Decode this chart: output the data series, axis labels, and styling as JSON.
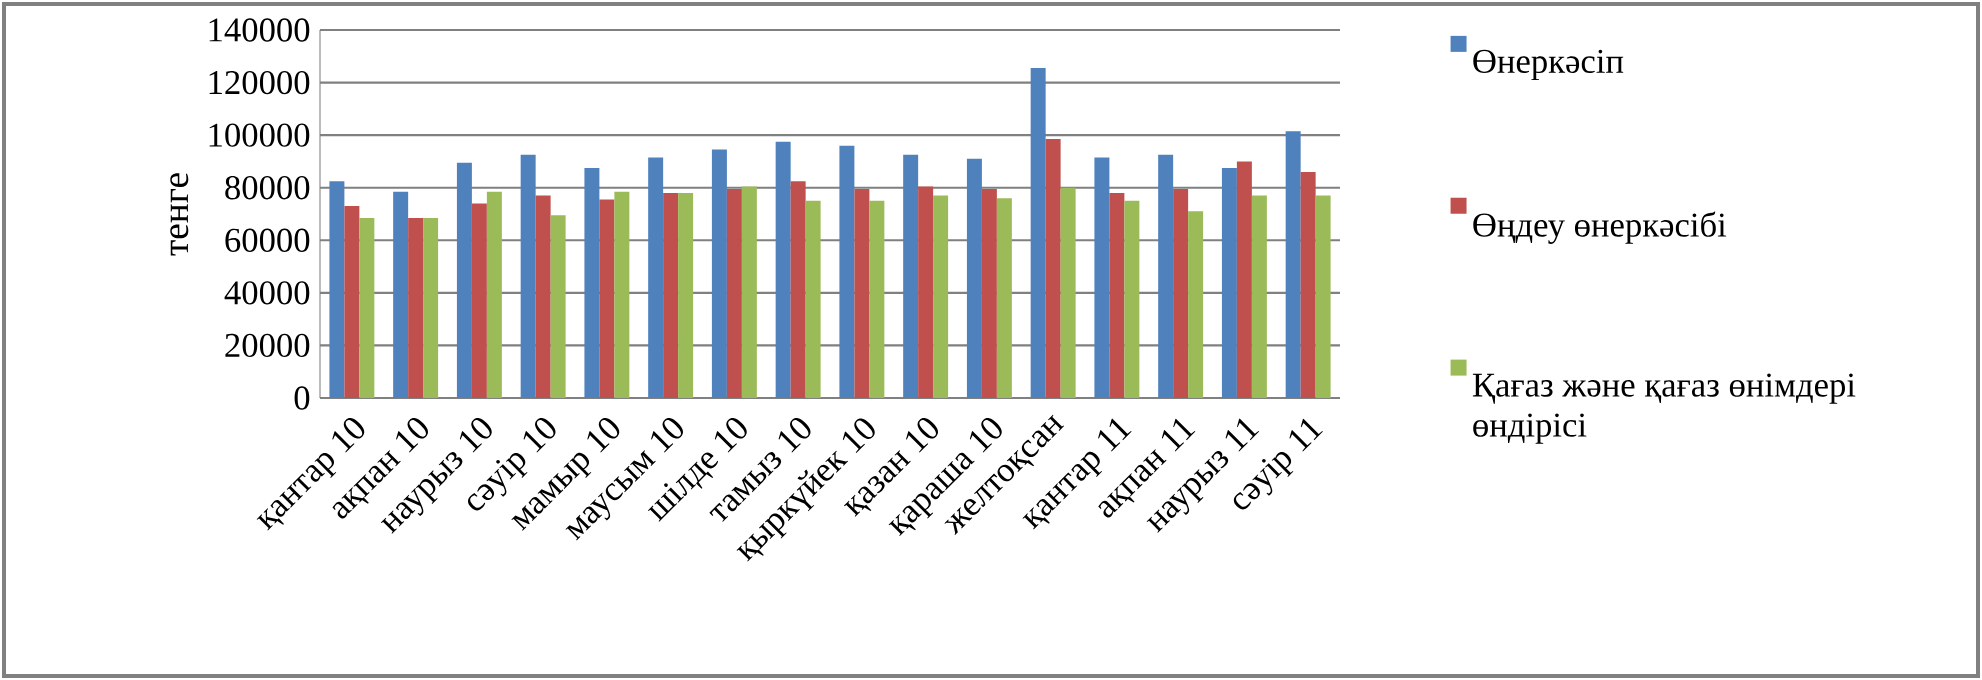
{
  "chart_data": {
    "type": "bar",
    "ylabel": "тенге",
    "categories": [
      "қантар 10",
      "ақпан 10",
      "наурыз 10",
      "сәуір 10",
      "мамыр 10",
      "маусым 10",
      "шілде 10",
      "тамыз 10",
      "қыркүйек 10",
      "қазан 10",
      "қараша 10",
      "желтоқсан",
      "қантар 11",
      "ақпан 11",
      "наурыз 11",
      "сәуір 11"
    ],
    "series": [
      {
        "name": "Өнеркәсіп",
        "color": "#4f81bd",
        "values": [
          82500,
          78500,
          89500,
          92500,
          87500,
          91500,
          94500,
          97500,
          96000,
          92500,
          91000,
          125500,
          91500,
          92500,
          87500,
          101500
        ]
      },
      {
        "name": "Өңдеу өнеркәсібі",
        "color": "#c0504d",
        "values": [
          73000,
          68500,
          74000,
          77000,
          75500,
          78000,
          79500,
          82500,
          79500,
          80500,
          79500,
          98500,
          78000,
          79500,
          90000,
          86000
        ]
      },
      {
        "name": "Қағаз  және қағаз өнімдері өндірісі",
        "color": "#9bbb59",
        "values": [
          68500,
          68500,
          78500,
          69500,
          78500,
          78000,
          80500,
          75000,
          75000,
          77000,
          76000,
          80000,
          75000,
          71000,
          77000,
          77000
        ]
      }
    ],
    "ylim": [
      0,
      140000
    ],
    "yticks": [
      0,
      20000,
      40000,
      60000,
      80000,
      100000,
      120000,
      140000
    ],
    "grid": "y",
    "legend": "right"
  }
}
